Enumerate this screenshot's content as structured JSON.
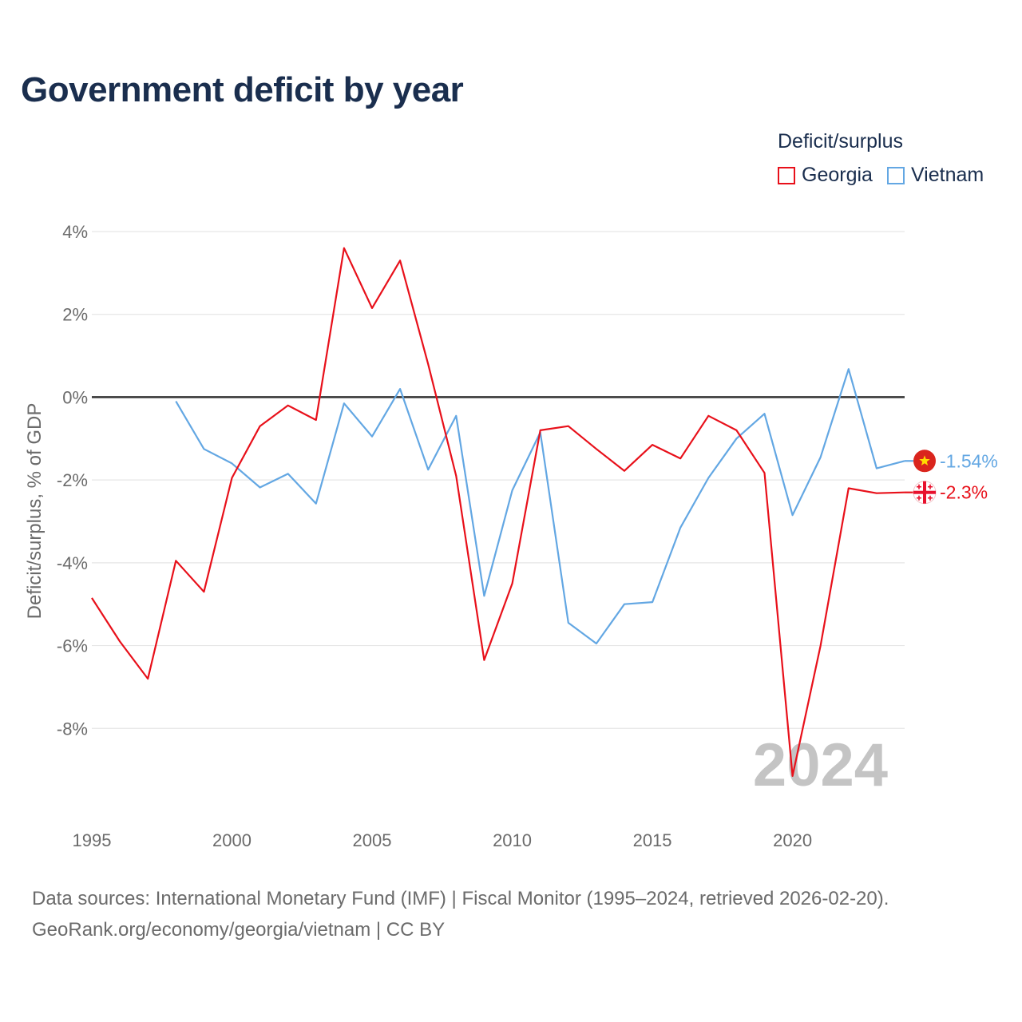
{
  "chart_data": {
    "type": "line",
    "title": "Government deficit by year",
    "xlabel": "",
    "ylabel": "Deficit/surplus, % of GDP",
    "legend_title": "Deficit/surplus",
    "legend_position": "top-right",
    "year_label": "2024",
    "xlim": [
      1995,
      2024
    ],
    "ylim": [
      -10,
      4
    ],
    "x_ticks": [
      1995,
      2000,
      2005,
      2010,
      2015,
      2020
    ],
    "x_tick_labels": [
      "1995",
      "2000",
      "2005",
      "2010",
      "2015",
      "2020"
    ],
    "y_ticks": [
      4,
      2,
      0,
      -2,
      -4,
      -6,
      -8
    ],
    "y_tick_labels": [
      "4%",
      "2%",
      "0%",
      "-2%",
      "-4%",
      "-6%",
      "-8%"
    ],
    "grid": true,
    "series": [
      {
        "name": "Georgia",
        "color": "#e8101a",
        "end_label": "-2.3%",
        "flag_icon": "georgia-flag-icon",
        "x": [
          1995,
          1996,
          1997,
          1998,
          1999,
          2000,
          2001,
          2002,
          2003,
          2004,
          2005,
          2006,
          2007,
          2008,
          2009,
          2010,
          2011,
          2012,
          2013,
          2014,
          2015,
          2016,
          2017,
          2018,
          2019,
          2020,
          2021,
          2022,
          2023,
          2024
        ],
        "values": [
          -4.85,
          -5.9,
          -6.8,
          -3.95,
          -4.7,
          -1.95,
          -0.7,
          -0.2,
          -0.55,
          3.6,
          2.15,
          3.3,
          0.8,
          -1.9,
          -6.35,
          -4.5,
          -0.8,
          -0.7,
          -1.25,
          -1.78,
          -1.15,
          -1.48,
          -0.45,
          -0.8,
          -1.83,
          -9.15,
          -6,
          -2.2,
          -2.32,
          -2.3
        ]
      },
      {
        "name": "Vietnam",
        "color": "#63a7e3",
        "end_label": "-1.54%",
        "flag_icon": "vietnam-flag-icon",
        "x": [
          1998,
          1999,
          2000,
          2001,
          2002,
          2003,
          2004,
          2005,
          2006,
          2007,
          2008,
          2009,
          2010,
          2011,
          2012,
          2013,
          2014,
          2015,
          2016,
          2017,
          2018,
          2019,
          2020,
          2021,
          2022,
          2023,
          2024
        ],
        "values": [
          -0.1,
          -1.25,
          -1.6,
          -2.18,
          -1.85,
          -2.57,
          -0.15,
          -0.95,
          0.2,
          -1.75,
          -0.45,
          -4.8,
          -2.25,
          -0.85,
          -5.45,
          -5.95,
          -5.0,
          -4.95,
          -3.15,
          -1.95,
          -1.0,
          -0.4,
          -2.85,
          -1.45,
          0.68,
          -1.72,
          -1.54
        ]
      }
    ]
  },
  "footer": {
    "sources": "Data sources: International Monetary Fund (IMF) | Fiscal Monitor (1995–2024, retrieved 2026-02-20).",
    "attribution": "GeoRank.org/economy/georgia/vietnam | CC BY"
  }
}
